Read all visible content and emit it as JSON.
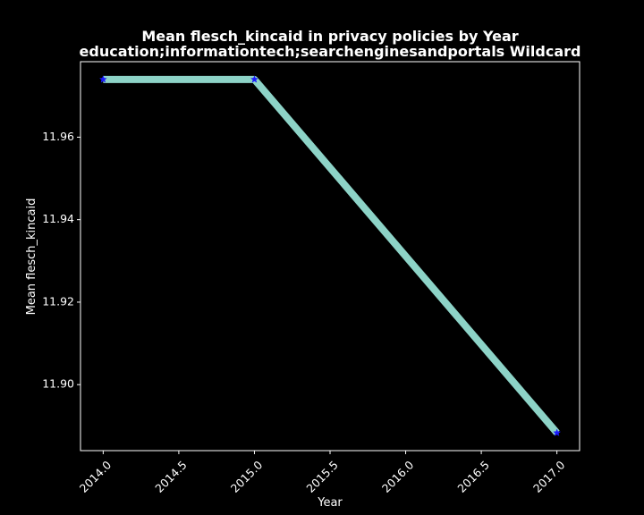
{
  "chart_data": {
    "type": "line",
    "title_line1": "Mean flesch_kincaid in privacy policies by Year",
    "title_line2": "education;informationtech;searchenginesandportals Wildcard",
    "xlabel": "Year",
    "ylabel": "Mean flesch_kincaid",
    "x": [
      2014.0,
      2015.0,
      2017.0
    ],
    "series": [
      {
        "values": [
          11.974,
          11.974,
          11.8883
        ]
      }
    ],
    "x_ticks": [
      2014.0,
      2014.5,
      2015.0,
      2015.5,
      2016.0,
      2016.5,
      2017.0
    ],
    "x_tick_labels": [
      "2014.0",
      "2014.5",
      "2015.0",
      "2015.5",
      "2016.0",
      "2016.5",
      "2017.0"
    ],
    "y_ticks": [
      11.9,
      11.92,
      11.94,
      11.96
    ],
    "y_tick_labels": [
      "11.90",
      "11.92",
      "11.94",
      "11.96"
    ],
    "xlim": [
      2013.85,
      2017.15
    ],
    "ylim": [
      11.884,
      11.9783
    ],
    "grid": false,
    "line_color": "#8dd3c7",
    "marker_color": "#1a1aff",
    "marker": "star",
    "background": "#000000",
    "axes_color": "#ffffff"
  }
}
